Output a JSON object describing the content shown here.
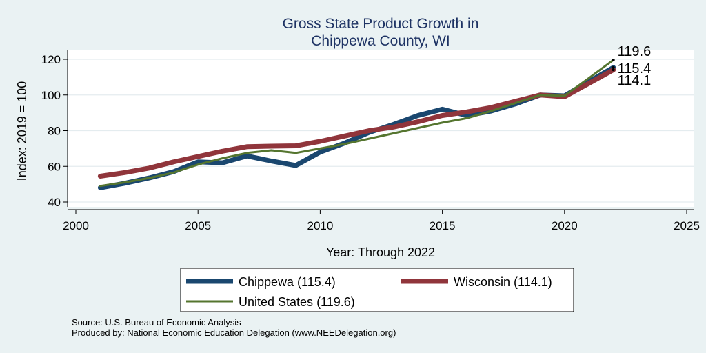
{
  "chart_data": {
    "type": "line",
    "title_line1": "Gross State Product Growth in",
    "title_line2": "Chippewa County, WI",
    "xlabel": "Year: Through 2022",
    "ylabel": "Index: 2019 = 100",
    "xlim": [
      2000,
      2025
    ],
    "ylim": [
      40,
      120
    ],
    "xticks": [
      "2000",
      "2005",
      "2010",
      "2015",
      "2020",
      "2025"
    ],
    "yticks": [
      "40",
      "60",
      "80",
      "100",
      "120"
    ],
    "grid": true,
    "legend_position": "bottom",
    "x": [
      2001,
      2002,
      2003,
      2004,
      2005,
      2006,
      2007,
      2008,
      2009,
      2010,
      2011,
      2012,
      2013,
      2014,
      2015,
      2016,
      2017,
      2018,
      2019,
      2020,
      2021,
      2022
    ],
    "series": [
      {
        "name": "Chippewa",
        "legend": "Chippewa  (115.4)",
        "end_label": "115.4",
        "color": "#1a476f",
        "values": [
          48,
          50.5,
          53.5,
          57,
          62.5,
          62,
          65.8,
          63,
          60.5,
          68,
          73,
          79,
          83.5,
          88.5,
          92,
          88.5,
          91,
          95,
          100,
          99.5,
          107.5,
          115.4
        ]
      },
      {
        "name": "Wisconsin",
        "legend": "Wisconsin (114.1)",
        "end_label": "114.1",
        "color": "#90353b",
        "values": [
          54.5,
          56.5,
          59,
          62.5,
          65.5,
          68.5,
          71,
          71.3,
          71.5,
          74,
          77,
          80,
          82,
          85,
          88.5,
          90.5,
          93,
          96.5,
          100,
          99,
          106.5,
          114.1
        ]
      },
      {
        "name": "United States",
        "legend": "United States (119.6)",
        "end_label": "119.6",
        "color": "#55752f",
        "values": [
          49,
          51,
          53.5,
          56.5,
          61,
          64.5,
          67.5,
          69,
          67.5,
          70,
          72.5,
          75.5,
          78.5,
          81.5,
          84.5,
          87,
          91,
          95.5,
          100,
          99.5,
          109.5,
          119.6
        ]
      }
    ],
    "notes": [
      "Source: U.S. Bureau of Economic Analysis",
      "Produced by: National Economic Education Delegation (www.NEEDelegation.org)"
    ]
  }
}
